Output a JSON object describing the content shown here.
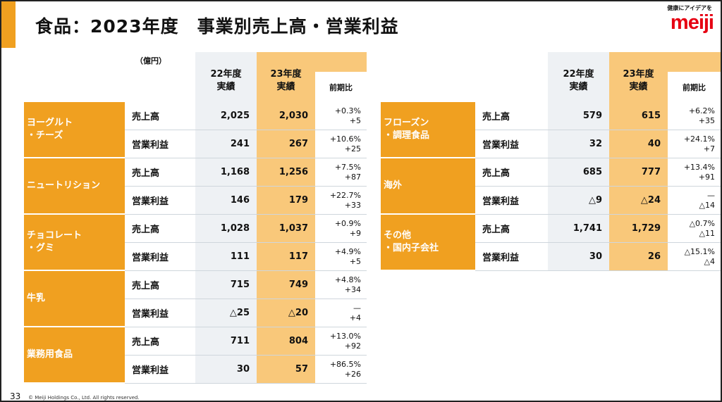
{
  "title": "食品：2023年度　事業別売上高・営業利益",
  "logo": {
    "tagline": "健康にアイデアを",
    "brand": "meiji"
  },
  "unit": "（億円）",
  "headers": {
    "fy22": "22年度\n実績",
    "fy23": "23年度\n実績",
    "ratio": "前期比"
  },
  "left": [
    {
      "segment": "ヨーグルト\n・チーズ",
      "rows": [
        {
          "label": "売上高",
          "fy22": "2,025",
          "fy23": "2,030",
          "pct": "+0.3%",
          "diff": "+5"
        },
        {
          "label": "営業利益",
          "fy22": "241",
          "fy23": "267",
          "pct": "+10.6%",
          "diff": "+25"
        }
      ]
    },
    {
      "segment": "ニュートリション",
      "rows": [
        {
          "label": "売上高",
          "fy22": "1,168",
          "fy23": "1,256",
          "pct": "+7.5%",
          "diff": "+87"
        },
        {
          "label": "営業利益",
          "fy22": "146",
          "fy23": "179",
          "pct": "+22.7%",
          "diff": "+33"
        }
      ]
    },
    {
      "segment": "チョコレート\n・グミ",
      "rows": [
        {
          "label": "売上高",
          "fy22": "1,028",
          "fy23": "1,037",
          "pct": "+0.9%",
          "diff": "+9"
        },
        {
          "label": "営業利益",
          "fy22": "111",
          "fy23": "117",
          "pct": "+4.9%",
          "diff": "+5"
        }
      ]
    },
    {
      "segment": "牛乳",
      "rows": [
        {
          "label": "売上高",
          "fy22": "715",
          "fy23": "749",
          "pct": "+4.8%",
          "diff": "+34"
        },
        {
          "label": "営業利益",
          "fy22": "△25",
          "fy23": "△20",
          "pct": "—",
          "diff": "+4"
        }
      ]
    },
    {
      "segment": "業務用食品",
      "rows": [
        {
          "label": "売上高",
          "fy22": "711",
          "fy23": "804",
          "pct": "+13.0%",
          "diff": "+92"
        },
        {
          "label": "営業利益",
          "fy22": "30",
          "fy23": "57",
          "pct": "+86.5%",
          "diff": "+26"
        }
      ]
    }
  ],
  "right": [
    {
      "segment": "フローズン\n・調理食品",
      "rows": [
        {
          "label": "売上高",
          "fy22": "579",
          "fy23": "615",
          "pct": "+6.2%",
          "diff": "+35"
        },
        {
          "label": "営業利益",
          "fy22": "32",
          "fy23": "40",
          "pct": "+24.1%",
          "diff": "+7"
        }
      ]
    },
    {
      "segment": "海外",
      "rows": [
        {
          "label": "売上高",
          "fy22": "685",
          "fy23": "777",
          "pct": "+13.4%",
          "diff": "+91"
        },
        {
          "label": "営業利益",
          "fy22": "△9",
          "fy23": "△24",
          "pct": "—",
          "diff": "△14"
        }
      ]
    },
    {
      "segment": "その他\n・国内子会社",
      "rows": [
        {
          "label": "売上高",
          "fy22": "1,741",
          "fy23": "1,729",
          "pct": "△0.7%",
          "diff": "△11"
        },
        {
          "label": "営業利益",
          "fy22": "30",
          "fy23": "26",
          "pct": "△15.1%",
          "diff": "△4"
        }
      ]
    }
  ],
  "footer": {
    "page": "33",
    "copyright": "© Meiji Holdings Co., Ltd. All rights reserved."
  }
}
